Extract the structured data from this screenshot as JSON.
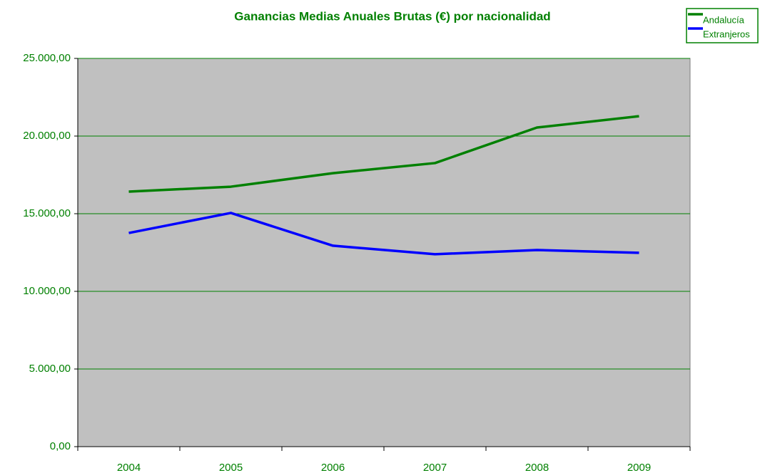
{
  "chart_data": {
    "type": "line",
    "title": "Ganancias Medias Anuales Brutas (€) por nacionalidad",
    "categories": [
      "2004",
      "2005",
      "2006",
      "2007",
      "2008",
      "2009"
    ],
    "series": [
      {
        "name": "Andalucía",
        "color": "#008000",
        "values": [
          16420,
          16740,
          17610,
          18260,
          20550,
          21280
        ]
      },
      {
        "name": "Extranjeros",
        "color": "#0000ff",
        "values": [
          13760,
          15050,
          12940,
          12390,
          12660,
          12480
        ]
      }
    ],
    "ylim": [
      0,
      25000
    ],
    "yticks": [
      {
        "value": 0,
        "label": "0,00"
      },
      {
        "value": 5000,
        "label": "5.000,00"
      },
      {
        "value": 10000,
        "label": "10.000,00"
      },
      {
        "value": 15000,
        "label": "15.000,00"
      },
      {
        "value": 20000,
        "label": "20.000,00"
      },
      {
        "value": 25000,
        "label": "25.000,00"
      }
    ],
    "grid": true,
    "legend": "top-right",
    "background": "#c0c0c0",
    "grid_color": "#008000"
  }
}
